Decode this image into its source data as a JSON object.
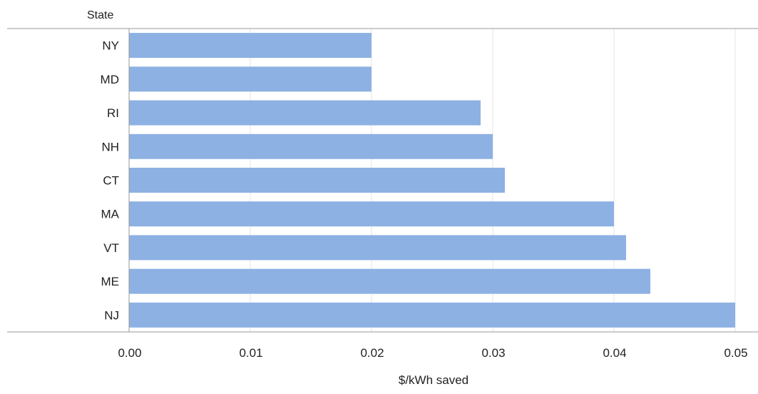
{
  "chart_data": {
    "type": "bar",
    "orientation": "horizontal",
    "categories": [
      "NY",
      "MD",
      "RI",
      "NH",
      "CT",
      "MA",
      "VT",
      "ME",
      "NJ"
    ],
    "values": [
      0.02,
      0.02,
      0.029,
      0.03,
      0.031,
      0.04,
      0.041,
      0.043,
      0.05
    ],
    "y_title": "State",
    "xlabel": "$/kWh saved",
    "xlim": [
      0,
      0.05
    ],
    "x_ticks": [
      "0.00",
      "0.01",
      "0.02",
      "0.03",
      "0.04",
      "0.05"
    ],
    "grid": "vertical",
    "colors": {
      "bar": "#8db1e3",
      "grid": "#e6e6e6",
      "axis": "#9a9a9a"
    }
  }
}
